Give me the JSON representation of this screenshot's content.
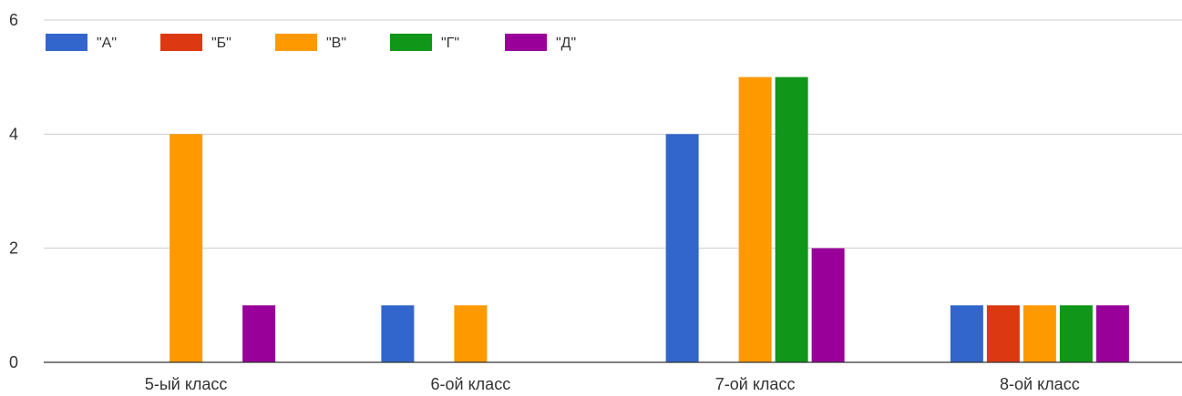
{
  "chart_data": {
    "type": "bar",
    "title": "",
    "xlabel": "",
    "ylabel": "",
    "ylim": [
      0,
      6
    ],
    "yticks": [
      "0",
      "2",
      "4",
      "6"
    ],
    "grid": true,
    "legend_position": "top-left",
    "categories": [
      "5-ый класс",
      "6-ой класс",
      "7-ой класс",
      "8-ой класс"
    ],
    "series": [
      {
        "name": "\"А\"",
        "color": "#3366cc",
        "values": [
          0,
          1,
          4,
          1
        ]
      },
      {
        "name": "\"Б\"",
        "color": "#dc3912",
        "values": [
          0,
          0,
          0,
          1
        ]
      },
      {
        "name": "\"В\"",
        "color": "#ff9900",
        "values": [
          4,
          1,
          5,
          1
        ]
      },
      {
        "name": "\"Г\"",
        "color": "#109618",
        "values": [
          0,
          0,
          5,
          1
        ]
      },
      {
        "name": "\"Д\"",
        "color": "#990099",
        "values": [
          1,
          0,
          2,
          1
        ]
      }
    ]
  }
}
